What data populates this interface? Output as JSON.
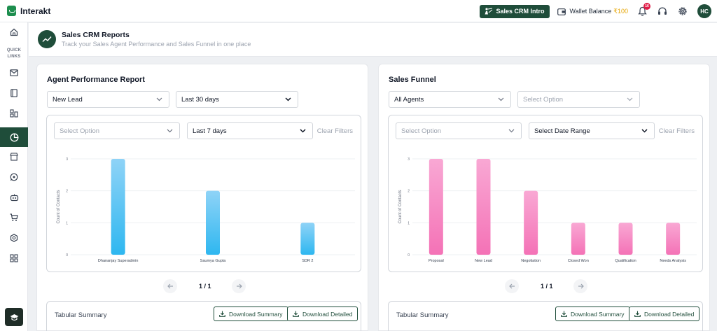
{
  "app": {
    "name": "Interakt"
  },
  "topbar": {
    "intro_button": "Sales CRM Intro",
    "wallet_label": "Wallet Balance",
    "wallet_amount": "₹100",
    "notification_count": "16",
    "avatar_initials": "HC"
  },
  "sidebar": {
    "quick_links_label": "QUICK LINKS",
    "items": [
      {
        "icon": "home-icon"
      },
      {
        "icon": "mail-icon"
      },
      {
        "icon": "book-icon"
      },
      {
        "icon": "workflow-icon"
      },
      {
        "icon": "pie-chart-icon",
        "active": true
      },
      {
        "icon": "store-icon"
      },
      {
        "icon": "whatsapp-icon"
      },
      {
        "icon": "bot-icon"
      },
      {
        "icon": "cart-icon"
      },
      {
        "icon": "settings-icon"
      },
      {
        "icon": "apps-grid-icon"
      }
    ],
    "bottom_icon": "graduation-cap-icon"
  },
  "page": {
    "title": "Sales CRM Reports",
    "subtitle": "Track your Sales Agent Performance and Sales Funnel in one place"
  },
  "agent_report": {
    "title": "Agent Performance Report",
    "filter1": "New Lead",
    "filter2": "Last 30 days",
    "inner_filter1_placeholder": "Select Option",
    "inner_filter2": "Last 7 days",
    "clear_filters": "Clear Filters",
    "pager": "1 / 1",
    "tabular_title": "Tabular Summary",
    "download_summary": "Download Summary",
    "download_detailed": "Download Detailed"
  },
  "sales_funnel": {
    "title": "Sales Funnel",
    "filter1": "All Agents",
    "filter2_placeholder": "Select Option",
    "inner_filter1_placeholder": "Select Option",
    "inner_filter2": "Select Date Range",
    "clear_filters": "Clear Filters",
    "pager": "1 / 1",
    "tabular_title": "Tabular Summary",
    "download_summary": "Download Summary",
    "download_detailed": "Download Detailed"
  },
  "chart_data": [
    {
      "type": "bar",
      "ylabel": "Count of Contacts",
      "ylim": [
        0,
        3
      ],
      "yticks": [
        "0",
        "1",
        "2",
        "3"
      ],
      "categories": [
        "Dhananjay Superadmin",
        "Saumya Gupta",
        "SDR 2"
      ],
      "values": [
        3,
        2,
        1
      ],
      "color_top": "#8fd3f7",
      "color_bottom": "#2eb7f0",
      "grid": true
    },
    {
      "type": "bar",
      "ylabel": "Count of Contacts",
      "ylim": [
        0,
        3
      ],
      "yticks": [
        "0",
        "1",
        "2",
        "3"
      ],
      "categories": [
        "Proposal",
        "New Lead",
        "Negotiation",
        "Closed Won",
        "Qualification",
        "Needs Analysis"
      ],
      "values": [
        3,
        3,
        2,
        1,
        1,
        1
      ],
      "color_top": "#f9a8d4",
      "color_bottom": "#f472b6",
      "grid": true
    }
  ]
}
